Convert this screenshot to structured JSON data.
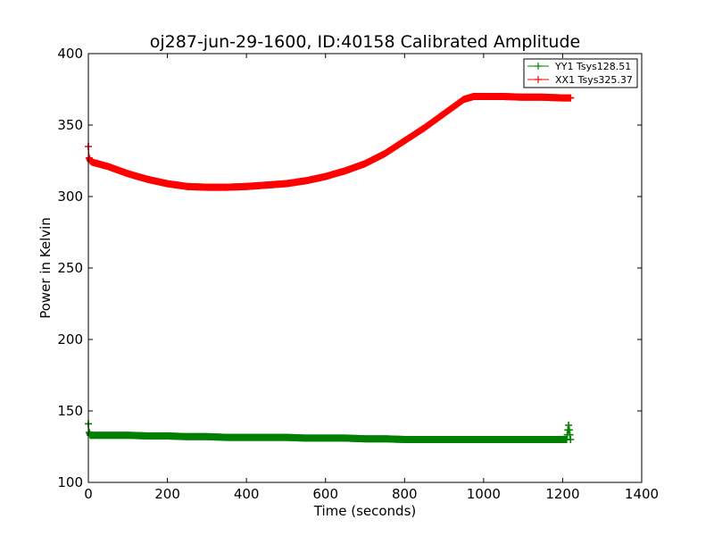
{
  "chart_data": {
    "type": "line",
    "title": "oj287-jun-29-1600, ID:40158 Calibrated Amplitude",
    "xlabel": "Time (seconds)",
    "ylabel": "Power in Kelvin",
    "xlim": [
      0,
      1400
    ],
    "ylim": [
      100,
      400
    ],
    "xticks": [
      0,
      200,
      400,
      600,
      800,
      1000,
      1200,
      1400
    ],
    "yticks": [
      100,
      150,
      200,
      250,
      300,
      350,
      400
    ],
    "grid": false,
    "legend_position": "top-right",
    "series": [
      {
        "name": "YY1 Tsys128.51",
        "color": "#008000",
        "marker": "+",
        "x": [
          0,
          2,
          5,
          10,
          50,
          100,
          150,
          200,
          250,
          300,
          350,
          400,
          450,
          500,
          550,
          600,
          650,
          700,
          750,
          800,
          850,
          900,
          950,
          1000,
          1050,
          1100,
          1150,
          1200,
          1210,
          1215,
          1220
        ],
        "y": [
          141,
          135,
          133,
          133,
          133,
          133,
          132.5,
          132.5,
          132,
          132,
          131.5,
          131.5,
          131.5,
          131.5,
          131,
          131,
          131,
          130.5,
          130.5,
          130,
          130,
          130,
          130,
          130,
          130,
          130,
          130,
          130,
          130,
          140,
          130
        ]
      },
      {
        "name": "XX1 Tsys325.37",
        "color": "#ff0000",
        "marker": "+",
        "x": [
          0,
          2,
          5,
          10,
          50,
          100,
          150,
          200,
          250,
          300,
          350,
          400,
          450,
          500,
          550,
          600,
          650,
          700,
          750,
          800,
          850,
          900,
          950,
          975,
          1000,
          1050,
          1100,
          1150,
          1200,
          1220
        ],
        "y": [
          335,
          327,
          325,
          324,
          321,
          316,
          312,
          309,
          307,
          306.5,
          306.5,
          307,
          308,
          309,
          311,
          314,
          318,
          323,
          330,
          339,
          348,
          358,
          368,
          370,
          370,
          370,
          369.5,
          369.5,
          369,
          369
        ]
      }
    ]
  }
}
